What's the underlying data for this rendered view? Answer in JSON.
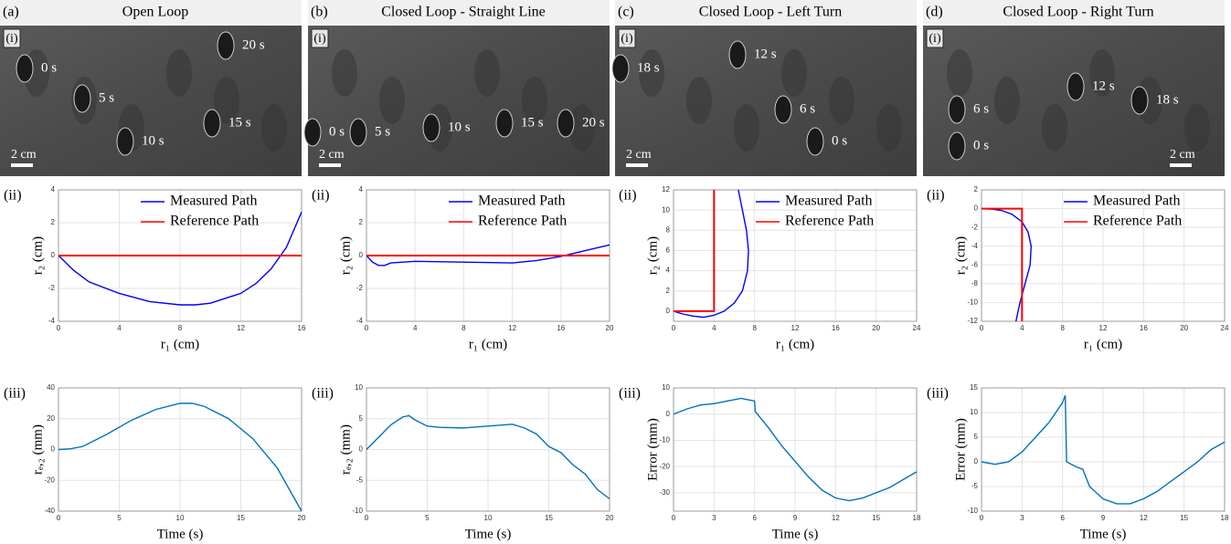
{
  "panels": [
    {
      "label": "(a)",
      "title": "Open Loop",
      "photo": {
        "label": "(i)",
        "scale": "2 cm",
        "times": [
          "0 s",
          "5 s",
          "10 s",
          "15 s",
          "20 s"
        ]
      }
    },
    {
      "label": "(b)",
      "title": "Closed Loop - Straight Line",
      "photo": {
        "label": "(i)",
        "scale": "2 cm",
        "times": [
          "0 s",
          "5 s",
          "10 s",
          "15 s",
          "20 s"
        ]
      }
    },
    {
      "label": "(c)",
      "title": "Closed Loop - Left Turn",
      "photo": {
        "label": "(i)",
        "scale": "2 cm",
        "times": [
          "18 s",
          "12 s",
          "6 s",
          "0 s"
        ]
      }
    },
    {
      "label": "(d)",
      "title": "Closed Loop - Right Turn",
      "photo": {
        "label": "(i)",
        "scale": "2 cm",
        "times": [
          "0 s",
          "6 s",
          "12 s",
          "18 s"
        ]
      }
    }
  ],
  "chart_data": [
    {
      "type": "line",
      "panel_label": "(ii)",
      "xlabel": "r₁ (cm)",
      "ylabel": "r₂ (cm)",
      "xlim": [
        0,
        16
      ],
      "ylim": [
        -4,
        4
      ],
      "xticks": [
        0,
        4,
        8,
        12,
        16
      ],
      "yticks": [
        -4,
        -2,
        0,
        2,
        4
      ],
      "grid": true,
      "legend": "upper right",
      "series": [
        {
          "name": "Measured Path",
          "color": "#0000ff",
          "x": [
            0,
            1,
            2,
            4,
            6,
            8,
            9,
            10,
            12,
            13,
            14,
            15,
            16
          ],
          "values": [
            0,
            -0.9,
            -1.6,
            -2.3,
            -2.8,
            -3.0,
            -3.0,
            -2.9,
            -2.3,
            -1.7,
            -0.8,
            0.5,
            2.65
          ]
        },
        {
          "name": "Reference Path",
          "color": "#ff0000",
          "x": [
            0,
            16
          ],
          "values": [
            0,
            0
          ]
        }
      ]
    },
    {
      "type": "line",
      "panel_label": "(ii)",
      "xlabel": "r₁ (cm)",
      "ylabel": "r₂ (cm)",
      "xlim": [
        0,
        20
      ],
      "ylim": [
        -4,
        4
      ],
      "xticks": [
        0,
        4,
        8,
        12,
        16,
        20
      ],
      "yticks": [
        -4,
        -2,
        0,
        2,
        4
      ],
      "grid": true,
      "legend": "upper right",
      "series": [
        {
          "name": "Measured Path",
          "color": "#0000ff",
          "x": [
            0,
            0.5,
            1,
            1.5,
            2,
            4,
            8,
            12,
            14,
            16,
            18,
            20
          ],
          "values": [
            0,
            -0.4,
            -0.6,
            -0.6,
            -0.45,
            -0.35,
            -0.4,
            -0.45,
            -0.3,
            -0.05,
            0.3,
            0.65
          ]
        },
        {
          "name": "Reference Path",
          "color": "#ff0000",
          "x": [
            0,
            20
          ],
          "values": [
            0,
            0
          ]
        }
      ]
    },
    {
      "type": "line",
      "panel_label": "(ii)",
      "xlabel": "r₁ (cm)",
      "ylabel": "r₂ (cm)",
      "xlim": [
        0,
        24
      ],
      "ylim": [
        -1,
        12
      ],
      "xticks": [
        0,
        4,
        8,
        12,
        16,
        20,
        24
      ],
      "yticks": [
        0,
        2,
        4,
        6,
        8,
        10,
        12
      ],
      "grid": true,
      "legend": "upper right",
      "series": [
        {
          "name": "Measured Path",
          "color": "#0000ff",
          "x": [
            0,
            1,
            2,
            3,
            4,
            5,
            6,
            6.8,
            7.3,
            7.4,
            7.2,
            6.8,
            6.4
          ],
          "values": [
            0,
            -0.3,
            -0.5,
            -0.6,
            -0.4,
            0,
            0.8,
            2,
            4,
            6,
            8,
            10,
            12
          ]
        },
        {
          "name": "Reference Path",
          "color": "#ff0000",
          "x": [
            0,
            4,
            4
          ],
          "values": [
            0,
            0,
            12
          ]
        }
      ]
    },
    {
      "type": "line",
      "panel_label": "(ii)",
      "xlabel": "r₁ (cm)",
      "ylabel": "r₂ (cm)",
      "xlim": [
        0,
        24
      ],
      "ylim": [
        -12,
        2
      ],
      "xticks": [
        0,
        4,
        8,
        12,
        16,
        20,
        24
      ],
      "yticks": [
        -12,
        -10,
        -8,
        -6,
        -4,
        -2,
        0,
        2
      ],
      "grid": true,
      "legend": "upper right",
      "series": [
        {
          "name": "Measured Path",
          "color": "#0000ff",
          "x": [
            0,
            1,
            2,
            3,
            4,
            4.6,
            4.9,
            4.8,
            4.3,
            3.8,
            3.4
          ],
          "values": [
            0,
            -0.05,
            -0.2,
            -0.6,
            -1.4,
            -2.5,
            -4,
            -6,
            -8,
            -10,
            -12
          ]
        },
        {
          "name": "Reference Path",
          "color": "#ff0000",
          "x": [
            0,
            4,
            4
          ],
          "values": [
            0,
            0,
            -12
          ]
        }
      ]
    },
    {
      "type": "line",
      "panel_label": "(iii)",
      "xlabel": "Time (s)",
      "ylabel": "rₑ,₂ (mm)",
      "xlim": [
        0,
        20
      ],
      "ylim": [
        -40,
        40
      ],
      "xticks": [
        0,
        5,
        10,
        15,
        20
      ],
      "yticks": [
        -40,
        -20,
        0,
        20,
        40
      ],
      "grid": true,
      "series": [
        {
          "color": "#0072bd",
          "x": [
            0,
            1,
            2,
            4,
            6,
            8,
            10,
            11,
            12,
            14,
            16,
            18,
            20
          ],
          "values": [
            0,
            0.5,
            2,
            10,
            19,
            26,
            30,
            30,
            28,
            20,
            7,
            -12,
            -40
          ]
        }
      ]
    },
    {
      "type": "line",
      "panel_label": "(iii)",
      "xlabel": "Time (s)",
      "ylabel": "rₑ,₂ (mm)",
      "xlim": [
        0,
        20
      ],
      "ylim": [
        -10,
        10
      ],
      "xticks": [
        0,
        5,
        10,
        15,
        20
      ],
      "yticks": [
        -10,
        -5,
        0,
        5,
        10
      ],
      "grid": true,
      "series": [
        {
          "color": "#0072bd",
          "x": [
            0,
            1,
            2,
            3,
            3.5,
            4,
            5,
            6,
            8,
            10,
            12,
            13,
            14,
            15,
            16,
            17,
            18,
            19,
            20
          ],
          "values": [
            0,
            2,
            4,
            5.3,
            5.5,
            4.8,
            3.8,
            3.6,
            3.5,
            3.8,
            4.1,
            3.5,
            2.5,
            0.5,
            -0.5,
            -2.5,
            -4,
            -6.5,
            -8
          ]
        }
      ]
    },
    {
      "type": "line",
      "panel_label": "(iii)",
      "xlabel": "Time (s)",
      "ylabel": "Error (mm)",
      "xlim": [
        0,
        18
      ],
      "ylim": [
        -37,
        10
      ],
      "xticks": [
        0,
        3,
        6,
        9,
        12,
        15,
        18
      ],
      "yticks": [
        -30,
        -20,
        -10,
        0,
        10
      ],
      "grid": true,
      "series": [
        {
          "color": "#0072bd",
          "x": [
            0,
            1,
            2,
            3,
            4,
            5,
            5.5,
            6,
            6.05,
            7,
            8,
            9,
            10,
            11,
            12,
            13,
            14,
            15,
            16,
            17,
            18
          ],
          "values": [
            0,
            2,
            3.5,
            4,
            5,
            6,
            5.5,
            5,
            1,
            -5,
            -12,
            -18,
            -24,
            -29,
            -32,
            -33,
            -32,
            -30,
            -28,
            -25,
            -22
          ]
        }
      ]
    },
    {
      "type": "line",
      "panel_label": "(iii)",
      "xlabel": "Time (s)",
      "ylabel": "Error (mm)",
      "xlim": [
        0,
        18
      ],
      "ylim": [
        -10,
        15
      ],
      "xticks": [
        0,
        3,
        6,
        9,
        12,
        15,
        18
      ],
      "yticks": [
        -10,
        -5,
        0,
        5,
        10,
        15
      ],
      "grid": true,
      "series": [
        {
          "color": "#0072bd",
          "x": [
            0,
            1,
            2,
            3,
            4,
            5,
            6,
            6.2,
            6.3,
            7,
            7.5,
            8,
            9,
            10,
            11,
            12,
            13,
            14,
            15,
            16,
            17,
            18
          ],
          "values": [
            0,
            -0.5,
            0,
            2,
            5,
            8,
            12,
            13.5,
            0,
            -1,
            -1.5,
            -5,
            -7.5,
            -8.5,
            -8.5,
            -7.5,
            -6,
            -4,
            -2,
            0,
            2.5,
            4
          ]
        }
      ]
    }
  ]
}
